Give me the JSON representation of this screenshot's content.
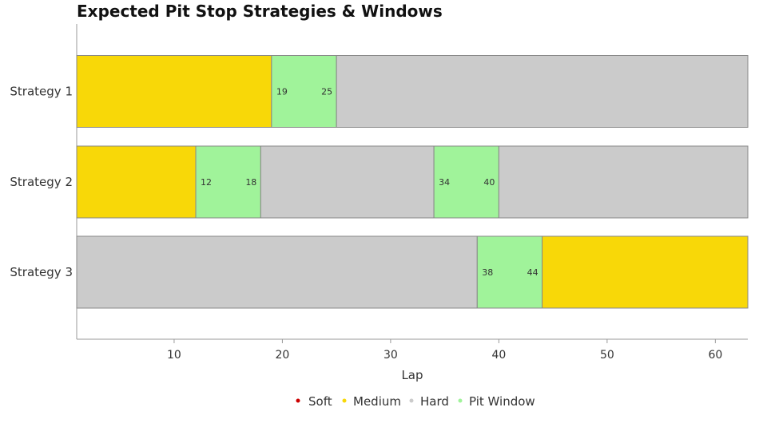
{
  "chart_data": {
    "type": "bar",
    "orientation": "horizontal",
    "stacked": true,
    "title": "Expected Pit Stop Strategies & Windows",
    "xlabel": "Lap",
    "ylabel": "",
    "xlim": [
      1,
      63
    ],
    "x_ticks": [
      10,
      20,
      30,
      40,
      50,
      60
    ],
    "grid": false,
    "legend_position": "bottom",
    "compound_colors": {
      "Soft": "#cc0000",
      "Medium": "#f8d808",
      "Hard": "#cbcbcb",
      "Pit Window": "#a0f39a"
    },
    "legend": [
      "Soft",
      "Medium",
      "Hard",
      "Pit Window"
    ],
    "categories": [
      "Strategy 1",
      "Strategy 2",
      "Strategy 3"
    ],
    "strategies": [
      {
        "name": "Strategy 1",
        "segments": [
          {
            "compound": "Medium",
            "start": 1,
            "end": 19
          },
          {
            "compound": "Pit Window",
            "start": 19,
            "end": 25
          },
          {
            "compound": "Hard",
            "start": 25,
            "end": 63
          }
        ],
        "windows": [
          {
            "start": 19,
            "end": 25
          }
        ]
      },
      {
        "name": "Strategy 2",
        "segments": [
          {
            "compound": "Medium",
            "start": 1,
            "end": 12
          },
          {
            "compound": "Pit Window",
            "start": 12,
            "end": 18
          },
          {
            "compound": "Hard",
            "start": 18,
            "end": 34
          },
          {
            "compound": "Pit Window",
            "start": 34,
            "end": 40
          },
          {
            "compound": "Hard",
            "start": 40,
            "end": 63
          }
        ],
        "windows": [
          {
            "start": 12,
            "end": 18
          },
          {
            "start": 34,
            "end": 40
          }
        ]
      },
      {
        "name": "Strategy 3",
        "segments": [
          {
            "compound": "Hard",
            "start": 1,
            "end": 38
          },
          {
            "compound": "Pit Window",
            "start": 38,
            "end": 44
          },
          {
            "compound": "Medium",
            "start": 44,
            "end": 63
          }
        ],
        "windows": [
          {
            "start": 38,
            "end": 44
          }
        ]
      }
    ]
  }
}
